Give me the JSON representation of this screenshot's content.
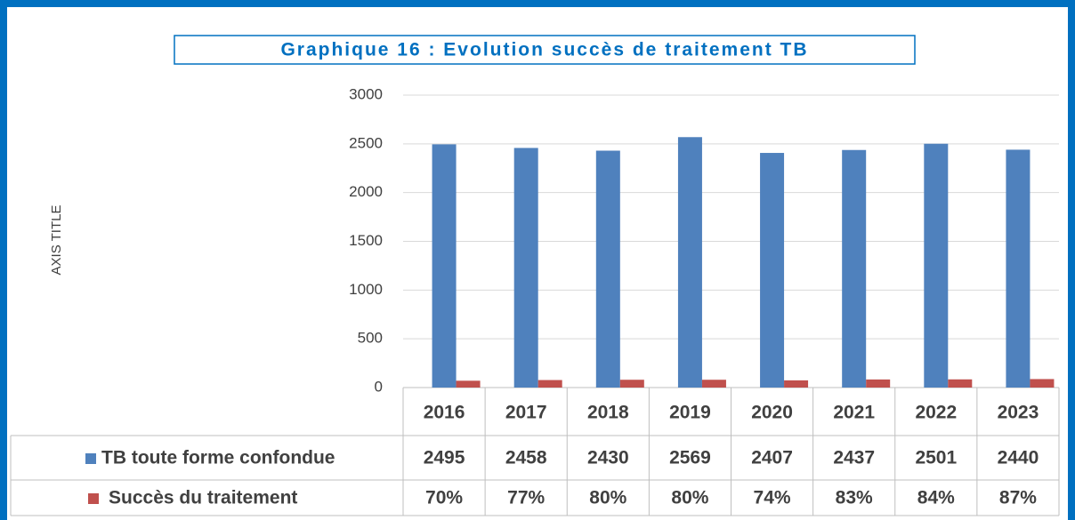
{
  "chart_data": {
    "type": "bar",
    "title": "Graphique 16 : Evolution succès de traitement TB",
    "y_axis_label": "AXIS TITLE",
    "categories": [
      "2016",
      "2017",
      "2018",
      "2019",
      "2020",
      "2021",
      "2022",
      "2023"
    ],
    "series": [
      {
        "name": "TB toute forme confondue",
        "color": "#4f81bd",
        "values": [
          2495,
          2458,
          2430,
          2569,
          2407,
          2437,
          2501,
          2440
        ]
      },
      {
        "name": "Succès du traitement",
        "color": "#c0504d",
        "values": [
          70,
          77,
          80,
          80,
          74,
          83,
          84,
          87
        ],
        "value_labels": [
          "70%",
          "77%",
          "80%",
          "80%",
          "74%",
          "83%",
          "84%",
          "87%"
        ]
      }
    ],
    "ylim": [
      0,
      3000
    ],
    "yticks": [
      0,
      500,
      1000,
      1500,
      2000,
      2500,
      3000
    ],
    "grid": true
  }
}
